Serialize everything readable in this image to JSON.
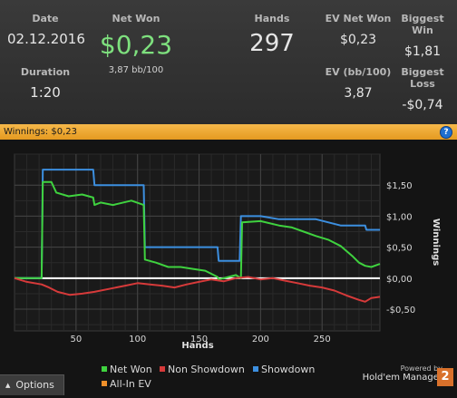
{
  "stats": {
    "date": {
      "label": "Date",
      "value": "02.12.2016"
    },
    "duration": {
      "label": "Duration",
      "value": "1:20"
    },
    "net_won": {
      "label": "Net Won",
      "value": "$0,23",
      "sub": "3,87 bb/100"
    },
    "hands": {
      "label": "Hands",
      "value": "297"
    },
    "ev_net_won": {
      "label": "EV Net Won",
      "value": "$0,23"
    },
    "biggest_win": {
      "label": "Biggest Win",
      "value": "$1,81"
    },
    "ev_bb100": {
      "label": "EV (bb/100)",
      "value": "3,87"
    },
    "biggest_loss": {
      "label": "Biggest Loss",
      "value": "-$0,74"
    }
  },
  "panel": {
    "title": "Winnings: $0,23",
    "help_icon": "help-icon"
  },
  "colors": {
    "net_won": "#3fd23f",
    "non_showdown": "#d63a3a",
    "showdown": "#3c8fe0",
    "all_in_ev": "#f0902a",
    "net_won_value": "#7ee07e",
    "title_bar": "#f0a830"
  },
  "chart_data": {
    "type": "line",
    "xlabel": "Hands",
    "ylabel": "Winnings",
    "xlim": [
      0,
      297
    ],
    "ylim": [
      -0.85,
      2.0
    ],
    "x_ticks": [
      50,
      100,
      150,
      200,
      250
    ],
    "y_ticks": [
      -0.5,
      0,
      0.5,
      1.0,
      1.5
    ],
    "y_tick_labels": [
      "-$0,50",
      "$0,00",
      "$0,50",
      "$1,00",
      "$1,50"
    ],
    "grid": true,
    "legend_position": "bottom",
    "series": [
      {
        "name": "Showdown",
        "color": "#3c8fe0",
        "points": [
          [
            0,
            0
          ],
          [
            22,
            0
          ],
          [
            23,
            1.75
          ],
          [
            64,
            1.75
          ],
          [
            65,
            1.5
          ],
          [
            105,
            1.5
          ],
          [
            106,
            0.5
          ],
          [
            165,
            0.5
          ],
          [
            166,
            0.28
          ],
          [
            183,
            0.28
          ],
          [
            184,
            1.0
          ],
          [
            200,
            1.0
          ],
          [
            215,
            0.95
          ],
          [
            245,
            0.95
          ],
          [
            265,
            0.85
          ],
          [
            285,
            0.85
          ],
          [
            286,
            0.78
          ],
          [
            297,
            0.78
          ]
        ]
      },
      {
        "name": "Net Won",
        "color": "#3fd23f",
        "points": [
          [
            0,
            0
          ],
          [
            22,
            0
          ],
          [
            23,
            1.55
          ],
          [
            30,
            1.55
          ],
          [
            34,
            1.38
          ],
          [
            44,
            1.32
          ],
          [
            55,
            1.35
          ],
          [
            64,
            1.3
          ],
          [
            65,
            1.18
          ],
          [
            70,
            1.22
          ],
          [
            80,
            1.18
          ],
          [
            95,
            1.25
          ],
          [
            105,
            1.18
          ],
          [
            106,
            0.3
          ],
          [
            115,
            0.25
          ],
          [
            125,
            0.18
          ],
          [
            135,
            0.18
          ],
          [
            145,
            0.15
          ],
          [
            155,
            0.12
          ],
          [
            162,
            0.05
          ],
          [
            165,
            0.02
          ],
          [
            166,
            -0.02
          ],
          [
            170,
            0.0
          ],
          [
            180,
            0.05
          ],
          [
            184,
            0.0
          ],
          [
            185,
            0.9
          ],
          [
            200,
            0.92
          ],
          [
            215,
            0.85
          ],
          [
            225,
            0.82
          ],
          [
            235,
            0.75
          ],
          [
            245,
            0.68
          ],
          [
            255,
            0.62
          ],
          [
            265,
            0.52
          ],
          [
            275,
            0.35
          ],
          [
            280,
            0.25
          ],
          [
            285,
            0.2
          ],
          [
            290,
            0.18
          ],
          [
            297,
            0.23
          ]
        ]
      },
      {
        "name": "Non Showdown",
        "color": "#d63a3a",
        "points": [
          [
            0,
            0
          ],
          [
            10,
            -0.06
          ],
          [
            22,
            -0.1
          ],
          [
            28,
            -0.15
          ],
          [
            35,
            -0.22
          ],
          [
            45,
            -0.27
          ],
          [
            55,
            -0.25
          ],
          [
            65,
            -0.22
          ],
          [
            80,
            -0.16
          ],
          [
            90,
            -0.12
          ],
          [
            100,
            -0.08
          ],
          [
            110,
            -0.1
          ],
          [
            120,
            -0.12
          ],
          [
            130,
            -0.15
          ],
          [
            140,
            -0.1
          ],
          [
            150,
            -0.06
          ],
          [
            160,
            -0.02
          ],
          [
            170,
            -0.05
          ],
          [
            180,
            0.0
          ],
          [
            190,
            0.02
          ],
          [
            200,
            -0.02
          ],
          [
            210,
            0.0
          ],
          [
            220,
            -0.04
          ],
          [
            230,
            -0.08
          ],
          [
            240,
            -0.12
          ],
          [
            250,
            -0.15
          ],
          [
            260,
            -0.2
          ],
          [
            270,
            -0.28
          ],
          [
            280,
            -0.35
          ],
          [
            285,
            -0.38
          ],
          [
            290,
            -0.32
          ],
          [
            297,
            -0.3
          ]
        ]
      },
      {
        "name": "All-In EV",
        "color": "#f0902a",
        "points": []
      }
    ]
  },
  "legend": [
    {
      "label": "Net Won",
      "color": "#3fd23f"
    },
    {
      "label": "Non Showdown",
      "color": "#d63a3a"
    },
    {
      "label": "Showdown",
      "color": "#3c8fe0"
    },
    {
      "label": "All-In EV",
      "color": "#f0902a"
    }
  ],
  "footer": {
    "options_label": "Options",
    "powered_by": "Powered by",
    "brand": "Hold'em Manager",
    "logo_text": "2"
  }
}
